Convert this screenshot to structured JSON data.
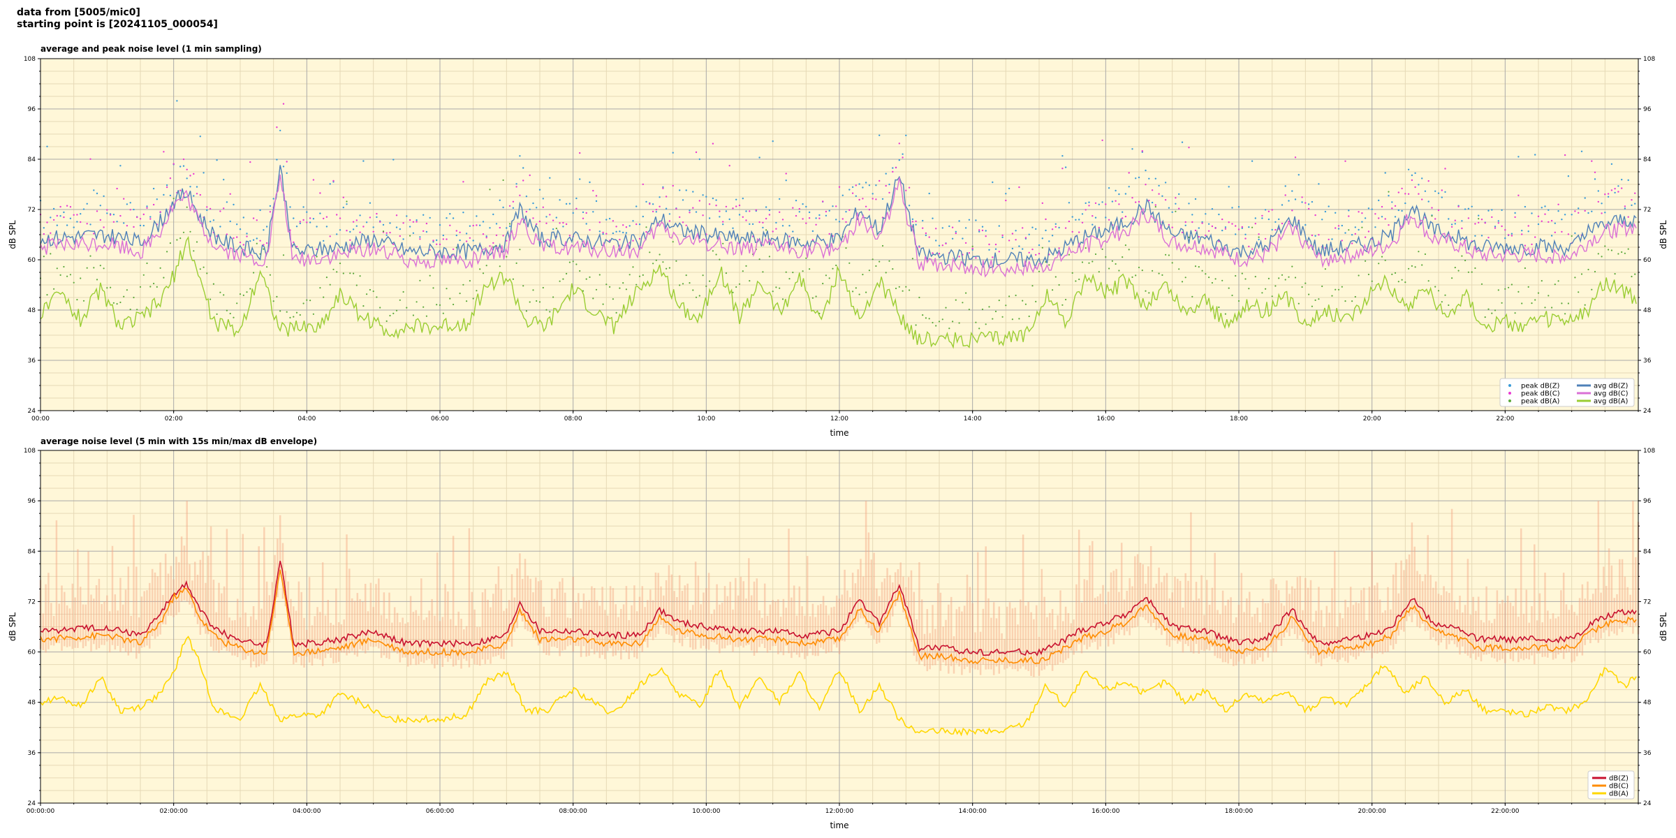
{
  "header": {
    "line1": "data from [5005/mic0]",
    "line2": "starting point is [20241105_000054]"
  },
  "colors": {
    "plot_bg": "#fff7d8",
    "grid_major": "#a9a9a9",
    "grid_minor": "#e6d9b6",
    "peak_z": "#3a9bd8",
    "peak_c": "#e83ad2",
    "peak_a": "#5aa83a",
    "avg_z": "#4f81b8",
    "avg_c": "#da70d6",
    "avg_a": "#9acd32",
    "p2_z": "#c8102e",
    "p2_c": "#ff8c00",
    "p2_a": "#ffd700",
    "envelope": "#f4a582"
  },
  "chart_data": [
    {
      "type": "line",
      "title": "average and peak noise level (1 min sampling)",
      "xlabel": "time",
      "ylabel": "dB SPL",
      "ylabel_right": "dB SPL",
      "xlim": [
        0,
        24
      ],
      "ylim": [
        24,
        108
      ],
      "yticks": [
        "24",
        "36",
        "48",
        "60",
        "72",
        "84",
        "96",
        "108"
      ],
      "xtick_labels": [
        "00:00",
        "02:00",
        "04:00",
        "06:00",
        "08:00",
        "10:00",
        "12:00",
        "14:00",
        "16:00",
        "18:00",
        "20:00",
        "22:00"
      ],
      "grid": true,
      "legend_position": "bottom-right",
      "legend": [
        {
          "label": "peak dB(Z)",
          "kind": "dot",
          "color_key": "peak_z"
        },
        {
          "label": "peak dB(C)",
          "kind": "dot",
          "color_key": "peak_c"
        },
        {
          "label": "peak dB(A)",
          "kind": "dot",
          "color_key": "peak_a"
        },
        {
          "label": "avg dB(Z)",
          "kind": "line",
          "color_key": "avg_z"
        },
        {
          "label": "avg dB(C)",
          "kind": "line",
          "color_key": "avg_c"
        },
        {
          "label": "avg dB(A)",
          "kind": "line",
          "color_key": "avg_a"
        }
      ],
      "series": [
        {
          "name": "avg dB(Z)",
          "color_key": "avg_z",
          "x": [
            0,
            0.5,
            1,
            1.5,
            1.8,
            2,
            2.2,
            2.4,
            2.6,
            2.8,
            3,
            3.2,
            3.4,
            3.6,
            3.8,
            4,
            4.5,
            5,
            5.5,
            6,
            6.5,
            7,
            7.2,
            7.5,
            8,
            8.5,
            9,
            9.3,
            9.6,
            10,
            10.5,
            11,
            11.5,
            12,
            12.3,
            12.6,
            12.9,
            13.2,
            13.5,
            14,
            14.5,
            15,
            15.3,
            15.6,
            16,
            16.3,
            16.6,
            17,
            17.5,
            18,
            18.4,
            18.8,
            19.2,
            19.6,
            20,
            20.3,
            20.6,
            20.9,
            21.2,
            21.6,
            22,
            22.5,
            23,
            23.3,
            23.6,
            24
          ],
          "values": [
            65,
            65.5,
            66,
            64,
            69,
            74,
            76,
            70,
            66,
            64,
            63,
            62,
            62,
            82,
            62,
            62,
            63,
            65,
            62,
            62,
            62,
            64,
            72,
            65,
            65,
            64,
            64,
            70,
            67,
            66,
            65,
            65,
            64,
            65,
            72,
            67,
            80,
            61,
            61,
            60,
            60,
            60,
            62,
            65,
            67,
            69,
            73,
            66,
            65,
            62,
            63,
            70,
            62,
            63,
            64,
            66,
            73,
            67,
            66,
            63,
            63,
            63,
            63,
            67,
            69,
            70
          ]
        },
        {
          "name": "avg dB(C)",
          "color_key": "avg_c",
          "x": [
            0,
            0.5,
            1,
            1.5,
            1.8,
            2,
            2.2,
            2.4,
            2.6,
            2.8,
            3,
            3.2,
            3.4,
            3.6,
            3.8,
            4,
            4.5,
            5,
            5.5,
            6,
            6.5,
            7,
            7.2,
            7.5,
            8,
            8.5,
            9,
            9.3,
            9.6,
            10,
            10.5,
            11,
            11.5,
            12,
            12.3,
            12.6,
            12.9,
            13.2,
            13.5,
            14,
            14.5,
            15,
            15.3,
            15.6,
            16,
            16.3,
            16.6,
            17,
            17.5,
            18,
            18.4,
            18.8,
            19.2,
            19.6,
            20,
            20.3,
            20.6,
            20.9,
            21.2,
            21.6,
            22,
            22.5,
            23,
            23.3,
            23.6,
            24
          ],
          "values": [
            63,
            63.5,
            64,
            62,
            67,
            73,
            75,
            68,
            64,
            62,
            61,
            60,
            60,
            80,
            60,
            60,
            61,
            63,
            60,
            60,
            60,
            62,
            70,
            63,
            63,
            62,
            62,
            68,
            65,
            64,
            63,
            63,
            62,
            63,
            70,
            65,
            78,
            59,
            59,
            58,
            58,
            58,
            60,
            63,
            65,
            67,
            71,
            64,
            63,
            60,
            61,
            68,
            60,
            61,
            62,
            64,
            71,
            65,
            64,
            61,
            61,
            61,
            61,
            65,
            67,
            68
          ]
        },
        {
          "name": "avg dB(A)",
          "color_key": "avg_a",
          "x": [
            0,
            0.3,
            0.6,
            0.9,
            1.2,
            1.5,
            1.8,
            2,
            2.2,
            2.4,
            2.6,
            2.8,
            3,
            3.3,
            3.6,
            3.9,
            4.2,
            4.5,
            4.8,
            5.2,
            5.6,
            6,
            6.4,
            6.7,
            7,
            7.3,
            7.6,
            8,
            8.3,
            8.6,
            9,
            9.3,
            9.6,
            9.9,
            10.2,
            10.5,
            10.8,
            11.1,
            11.4,
            11.7,
            12,
            12.3,
            12.6,
            12.9,
            13.2,
            13.6,
            14,
            14.4,
            14.8,
            15.1,
            15.4,
            15.7,
            16,
            16.3,
            16.6,
            16.9,
            17.2,
            17.5,
            17.8,
            18.1,
            18.4,
            18.7,
            19,
            19.3,
            19.6,
            19.9,
            20.2,
            20.5,
            20.8,
            21.1,
            21.4,
            21.7,
            22,
            22.3,
            22.6,
            22.9,
            23.2,
            23.5,
            23.8,
            24
          ],
          "values": [
            47,
            52,
            46,
            53,
            44,
            46,
            50,
            56,
            65,
            55,
            45,
            44,
            43,
            58,
            43,
            44,
            44,
            52,
            47,
            43,
            44,
            44,
            45,
            54,
            56,
            45,
            44,
            53,
            48,
            44,
            53,
            58,
            49,
            46,
            58,
            46,
            55,
            47,
            56,
            45,
            58,
            45,
            55,
            47,
            41,
            41,
            41,
            41,
            42,
            52,
            45,
            56,
            52,
            55,
            49,
            54,
            47,
            51,
            44,
            49,
            48,
            51,
            45,
            48,
            46,
            50,
            56,
            48,
            54,
            46,
            52,
            44,
            45,
            44,
            46,
            45,
            47,
            55,
            52,
            50
          ]
        }
      ]
    },
    {
      "type": "line",
      "title": "average noise level (5 min with 15s min/max dB envelope)",
      "xlabel": "time",
      "ylabel": "dB SPL",
      "ylabel_right": "dB SPL",
      "xlim": [
        0,
        24
      ],
      "ylim": [
        24,
        108
      ],
      "yticks": [
        "24",
        "36",
        "48",
        "60",
        "72",
        "84",
        "96",
        "108"
      ],
      "xtick_labels": [
        "00:00:00",
        "02:00:00",
        "04:00:00",
        "06:00:00",
        "08:00:00",
        "10:00:00",
        "12:00:00",
        "14:00:00",
        "16:00:00",
        "18:00:00",
        "20:00:00",
        "22:00:00"
      ],
      "grid": true,
      "legend_position": "bottom-right",
      "legend": [
        {
          "label": "dB(Z)",
          "kind": "line",
          "color_key": "p2_z"
        },
        {
          "label": "dB(C)",
          "kind": "line",
          "color_key": "p2_c"
        },
        {
          "label": "dB(A)",
          "kind": "line",
          "color_key": "p2_a"
        }
      ],
      "series": [
        {
          "name": "dB(Z)",
          "color_key": "p2_z",
          "x": [
            0,
            0.5,
            1,
            1.5,
            1.8,
            2,
            2.2,
            2.4,
            2.6,
            2.8,
            3,
            3.2,
            3.4,
            3.6,
            3.8,
            4,
            4.5,
            5,
            5.5,
            6,
            6.5,
            7,
            7.2,
            7.5,
            8,
            8.5,
            9,
            9.3,
            9.6,
            10,
            10.5,
            11,
            11.5,
            12,
            12.3,
            12.6,
            12.9,
            13.2,
            13.5,
            14,
            14.5,
            15,
            15.3,
            15.6,
            16,
            16.3,
            16.6,
            17,
            17.5,
            18,
            18.4,
            18.8,
            19.2,
            19.6,
            20,
            20.3,
            20.6,
            20.9,
            21.2,
            21.6,
            22,
            22.5,
            23,
            23.3,
            23.6,
            24
          ],
          "values": [
            65,
            65.5,
            66,
            64,
            69,
            74,
            76,
            70,
            66,
            64,
            63,
            62,
            62,
            82,
            62,
            62,
            63,
            65,
            62,
            62,
            62,
            64,
            72,
            65,
            65,
            64,
            64,
            70,
            67,
            66,
            65,
            65,
            64,
            65,
            72,
            67,
            76,
            61,
            61,
            60,
            60,
            60,
            62,
            65,
            67,
            69,
            73,
            66,
            65,
            62,
            63,
            70,
            62,
            63,
            64,
            66,
            73,
            67,
            66,
            63,
            63,
            63,
            63,
            67,
            69,
            70
          ]
        },
        {
          "name": "dB(C)",
          "color_key": "p2_c",
          "x": [
            0,
            0.5,
            1,
            1.5,
            1.8,
            2,
            2.2,
            2.4,
            2.6,
            2.8,
            3,
            3.2,
            3.4,
            3.6,
            3.8,
            4,
            4.5,
            5,
            5.5,
            6,
            6.5,
            7,
            7.2,
            7.5,
            8,
            8.5,
            9,
            9.3,
            9.6,
            10,
            10.5,
            11,
            11.5,
            12,
            12.3,
            12.6,
            12.9,
            13.2,
            13.5,
            14,
            14.5,
            15,
            15.3,
            15.6,
            16,
            16.3,
            16.6,
            17,
            17.5,
            18,
            18.4,
            18.8,
            19.2,
            19.6,
            20,
            20.3,
            20.6,
            20.9,
            21.2,
            21.6,
            22,
            22.5,
            23,
            23.3,
            23.6,
            24
          ],
          "values": [
            63,
            63.5,
            64,
            62,
            67,
            73,
            75,
            68,
            64,
            62,
            61,
            60,
            60,
            80,
            60,
            60,
            61,
            63,
            60,
            60,
            60,
            62,
            70,
            63,
            63,
            62,
            62,
            68,
            65,
            64,
            63,
            63,
            62,
            63,
            70,
            65,
            74,
            59,
            59,
            58,
            58,
            58,
            60,
            63,
            65,
            67,
            71,
            64,
            63,
            60,
            61,
            68,
            60,
            61,
            62,
            64,
            71,
            65,
            64,
            61,
            61,
            61,
            61,
            65,
            67,
            68
          ]
        },
        {
          "name": "dB(A)",
          "color_key": "p2_a",
          "x": [
            0,
            0.3,
            0.6,
            0.9,
            1.2,
            1.5,
            1.8,
            2,
            2.2,
            2.4,
            2.6,
            2.8,
            3,
            3.3,
            3.6,
            3.9,
            4.2,
            4.5,
            4.8,
            5.2,
            5.6,
            6,
            6.4,
            6.7,
            7,
            7.3,
            7.6,
            8,
            8.3,
            8.6,
            9,
            9.3,
            9.6,
            9.9,
            10.2,
            10.5,
            10.8,
            11.1,
            11.4,
            11.7,
            12,
            12.3,
            12.6,
            12.9,
            13.2,
            13.6,
            14,
            14.4,
            14.8,
            15.1,
            15.4,
            15.7,
            16,
            16.3,
            16.6,
            16.9,
            17.2,
            17.5,
            17.8,
            18.1,
            18.4,
            18.7,
            19,
            19.3,
            19.6,
            19.9,
            20.2,
            20.5,
            20.8,
            21.1,
            21.4,
            21.7,
            22,
            22.3,
            22.6,
            22.9,
            23.2,
            23.5,
            23.8,
            24
          ],
          "values": [
            48,
            49,
            47,
            54,
            46,
            47,
            50,
            55,
            64,
            57,
            47,
            45,
            44,
            52,
            44,
            45,
            45,
            50,
            48,
            44,
            44,
            44,
            45,
            53,
            55,
            46,
            46,
            51,
            48,
            45,
            52,
            56,
            50,
            47,
            56,
            47,
            54,
            48,
            55,
            46,
            56,
            46,
            52,
            44,
            41,
            41,
            41,
            41,
            43,
            52,
            47,
            55,
            51,
            53,
            50,
            53,
            48,
            51,
            46,
            50,
            48,
            51,
            46,
            49,
            47,
            52,
            57,
            50,
            54,
            48,
            51,
            46,
            46,
            45,
            47,
            46,
            48,
            56,
            52,
            55
          ]
        }
      ]
    }
  ]
}
